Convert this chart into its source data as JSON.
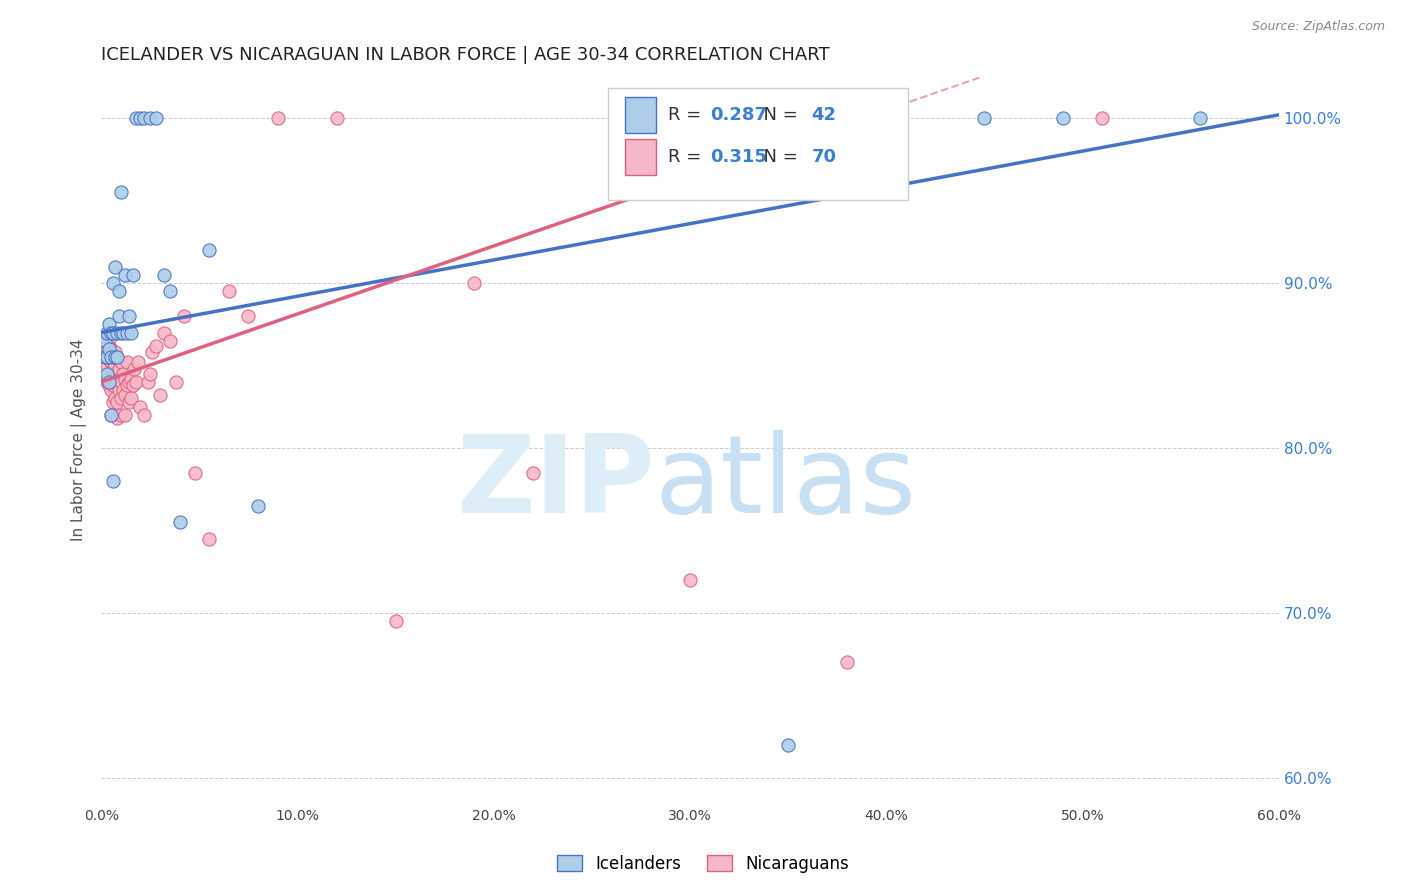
{
  "title": "ICELANDER VS NICARAGUAN IN LABOR FORCE | AGE 30-34 CORRELATION CHART",
  "source": "Source: ZipAtlas.com",
  "ylabel": "In Labor Force | Age 30-34",
  "xmin": 0.0,
  "xmax": 0.6,
  "ymin": 0.585,
  "ymax": 1.025,
  "right_yticks": [
    0.6,
    0.7,
    0.8,
    0.9,
    1.0
  ],
  "right_ytick_labels": [
    "60.0%",
    "70.0%",
    "80.0%",
    "90.0%",
    "100.0%"
  ],
  "blue_R": 0.287,
  "blue_N": 42,
  "pink_R": 0.315,
  "pink_N": 70,
  "blue_color": "#aecde8",
  "pink_color": "#f5b8c8",
  "blue_line_color": "#4472c4",
  "pink_line_color": "#e06080",
  "legend_R_color": "#3a7fd4",
  "background_color": "#ffffff",
  "grid_color": "#cccccc",
  "title_color": "#222222",
  "blue_scatter_x": [
    0.002,
    0.002,
    0.003,
    0.003,
    0.003,
    0.004,
    0.004,
    0.004,
    0.005,
    0.005,
    0.005,
    0.006,
    0.006,
    0.006,
    0.007,
    0.007,
    0.008,
    0.008,
    0.009,
    0.009,
    0.01,
    0.01,
    0.011,
    0.012,
    0.013,
    0.014,
    0.015,
    0.016,
    0.018,
    0.02,
    0.022,
    0.025,
    0.028,
    0.032,
    0.035,
    0.04,
    0.055,
    0.08,
    0.35,
    0.45,
    0.49,
    0.56
  ],
  "blue_scatter_y": [
    0.855,
    0.865,
    0.845,
    0.855,
    0.87,
    0.84,
    0.86,
    0.875,
    0.82,
    0.855,
    0.87,
    0.78,
    0.87,
    0.9,
    0.855,
    0.91,
    0.855,
    0.87,
    0.88,
    0.895,
    0.87,
    0.955,
    0.87,
    0.905,
    0.87,
    0.88,
    0.87,
    0.905,
    1.0,
    1.0,
    1.0,
    1.0,
    1.0,
    0.905,
    0.895,
    0.755,
    0.92,
    0.765,
    0.62,
    1.0,
    1.0,
    1.0
  ],
  "pink_scatter_x": [
    0.002,
    0.002,
    0.003,
    0.003,
    0.003,
    0.003,
    0.004,
    0.004,
    0.004,
    0.004,
    0.005,
    0.005,
    0.005,
    0.005,
    0.005,
    0.005,
    0.006,
    0.006,
    0.006,
    0.007,
    0.007,
    0.007,
    0.007,
    0.008,
    0.008,
    0.008,
    0.009,
    0.009,
    0.01,
    0.01,
    0.01,
    0.01,
    0.011,
    0.011,
    0.012,
    0.012,
    0.012,
    0.013,
    0.013,
    0.014,
    0.014,
    0.015,
    0.015,
    0.016,
    0.017,
    0.018,
    0.019,
    0.02,
    0.022,
    0.024,
    0.025,
    0.026,
    0.028,
    0.03,
    0.032,
    0.035,
    0.038,
    0.042,
    0.048,
    0.055,
    0.065,
    0.075,
    0.09,
    0.12,
    0.15,
    0.19,
    0.22,
    0.3,
    0.38,
    0.51
  ],
  "pink_scatter_y": [
    0.855,
    0.862,
    0.84,
    0.85,
    0.858,
    0.865,
    0.838,
    0.845,
    0.855,
    0.862,
    0.82,
    0.835,
    0.842,
    0.852,
    0.86,
    0.868,
    0.828,
    0.838,
    0.848,
    0.83,
    0.84,
    0.85,
    0.858,
    0.818,
    0.828,
    0.84,
    0.835,
    0.848,
    0.82,
    0.83,
    0.84,
    0.852,
    0.835,
    0.845,
    0.82,
    0.832,
    0.842,
    0.838,
    0.852,
    0.828,
    0.84,
    0.83,
    0.842,
    0.838,
    0.848,
    0.84,
    0.852,
    0.825,
    0.82,
    0.84,
    0.845,
    0.858,
    0.862,
    0.832,
    0.87,
    0.865,
    0.84,
    0.88,
    0.785,
    0.745,
    0.895,
    0.88,
    1.0,
    1.0,
    0.695,
    0.9,
    0.785,
    0.72,
    0.67,
    1.0
  ]
}
